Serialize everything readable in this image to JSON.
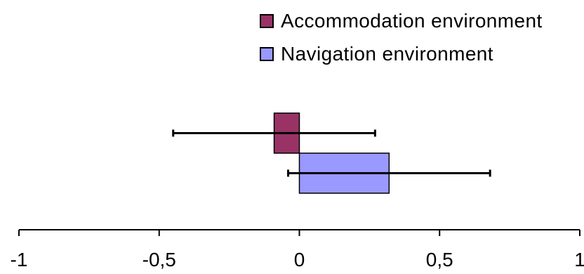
{
  "chart_data": {
    "type": "bar",
    "orientation": "horizontal",
    "series": [
      {
        "name": "Accommodation environment",
        "value": -0.09,
        "error_low": -0.45,
        "error_high": 0.27,
        "color": "#993366"
      },
      {
        "name": "Navigation environment",
        "value": 0.32,
        "error_low": -0.04,
        "error_high": 0.68,
        "color": "#9999ff"
      }
    ],
    "xlim": [
      -1,
      1
    ],
    "x_ticks": [
      -1,
      -0.5,
      0,
      0.5,
      1
    ],
    "x_tick_labels": [
      "-1",
      "-0,5",
      "0",
      "0,5",
      "1"
    ],
    "legend_position": "top-right",
    "grid": false
  }
}
